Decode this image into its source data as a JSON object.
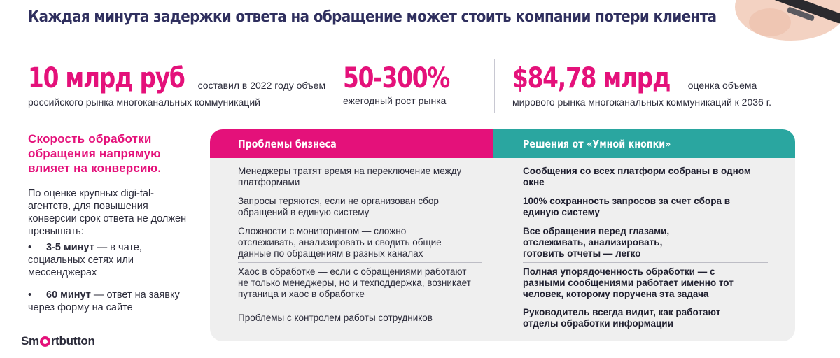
{
  "title": "Каждая минута задержки ответа на обращение может стоить компании потери клиента",
  "stats": [
    {
      "big": "10 млрд руб",
      "line1": "составил в 2022 году объем",
      "line2": "российского рынка многоканальных коммуникаций"
    },
    {
      "big": "50-300%",
      "line1": "",
      "line2": "ежегодный рост рынка"
    },
    {
      "big": "$84,78 млрд",
      "line1": "оценка объема",
      "line2": "мирового рынка многоканальных коммуникаций к 2036 г."
    }
  ],
  "left": {
    "heading": "Скорость обработки обращения напрямую влияет на конверсию.",
    "paragraph": "По оценке крупных digi-tal-агентств, для повышения конверсии срок ответа не должен превышать:",
    "bullets": [
      {
        "dot": "•",
        "bold": "3-5 минут",
        "text": " — в чате, социальных сетях или мессенджерах"
      },
      {
        "dot": "•",
        "bold": "60 минут",
        "text": " — ответ на заявку через форму на сайте"
      }
    ]
  },
  "logo": {
    "part1": "Sm",
    "part2": "rtbutton"
  },
  "table": {
    "header_left": "Проблемы бизнеса",
    "header_right": "Решения от «Умной кнопки»",
    "rows": [
      {
        "problem": "Менеджеры тратят время на переключение между платформами",
        "solution": "Сообщения со всех платформ собраны в одном окне"
      },
      {
        "problem": "Запросы теряются, если не организован сбор обращений в единую систему",
        "solution": "100% сохранность запросов за счет сбора в единую систему"
      },
      {
        "problem": "Сложности с мониторингом — сложно отслеживать, анализировать и сводить общие данные по обращениям в разных каналах",
        "solution": "Все обращения перед глазами, отслеживать, анализировать, готовить отчеты — легко"
      },
      {
        "problem": "Хаос в обработке — если с обращениями работают не только менеджеры, но и техподдержка, возникает путаница и хаос в обработке",
        "solution": "Полная упорядоченность обработки — с разными сообщениями работает именно тот человек, которому поручена эта задача"
      },
      {
        "problem": "Проблемы с контролем работы сотрудников",
        "solution": "Руководитель всегда видит, как работают отделы обработки информации"
      }
    ]
  }
}
